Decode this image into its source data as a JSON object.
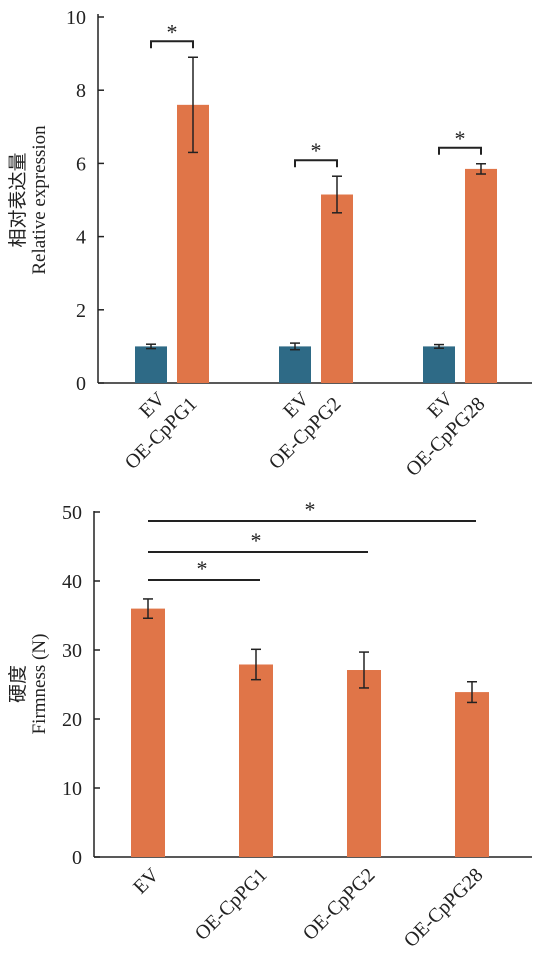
{
  "colors": {
    "ev": "#2e6a86",
    "oe": "#e07548",
    "axis": "#222222"
  },
  "chart_data": [
    {
      "type": "bar",
      "ylabel_cn": "相对表达量",
      "ylabel_en": "Relative expression",
      "ylim": [
        0,
        10
      ],
      "yticks": [
        0,
        2,
        4,
        6,
        8,
        10
      ],
      "groups": [
        {
          "labels": [
            "EV",
            "OE-CpPG1"
          ],
          "values": [
            1.0,
            7.6
          ],
          "errors": [
            0.06,
            1.3
          ],
          "sig": "*"
        },
        {
          "labels": [
            "EV",
            "OE-CpPG2"
          ],
          "values": [
            1.0,
            5.15
          ],
          "errors": [
            0.09,
            0.5
          ],
          "sig": "*"
        },
        {
          "labels": [
            "EV",
            "OE-CpPG28"
          ],
          "values": [
            1.0,
            5.85
          ],
          "errors": [
            0.05,
            0.14
          ],
          "sig": "*"
        }
      ]
    },
    {
      "type": "bar",
      "ylabel_cn": "硬度",
      "ylabel_en": "Firmness (N)",
      "ylim": [
        0,
        50
      ],
      "yticks": [
        0,
        10,
        20,
        30,
        40,
        50
      ],
      "categories": [
        "EV",
        "OE-CpPG1",
        "OE-CpPG2",
        "OE-CpPG28"
      ],
      "values": [
        36.0,
        27.9,
        27.1,
        23.9
      ],
      "errors": [
        1.4,
        2.2,
        2.6,
        1.5
      ],
      "comparisons": [
        {
          "from": "EV",
          "to": "OE-CpPG1",
          "label": "*"
        },
        {
          "from": "EV",
          "to": "OE-CpPG2",
          "label": "*"
        },
        {
          "from": "EV",
          "to": "OE-CpPG28",
          "label": "*"
        }
      ]
    }
  ]
}
